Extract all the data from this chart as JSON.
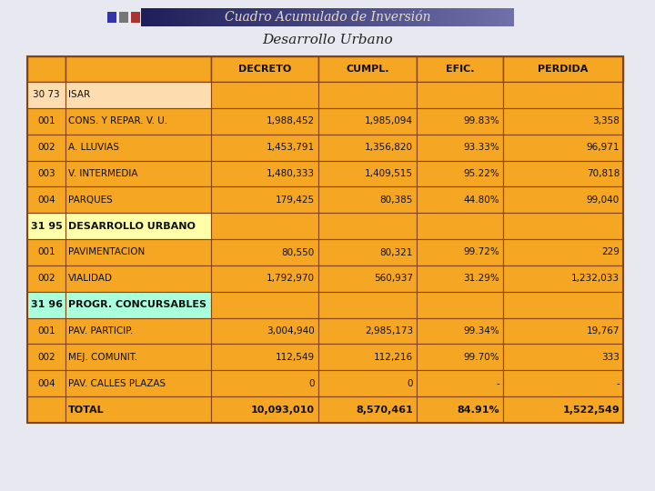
{
  "title1": "Cuadro Acumulado de Inversión",
  "title2": "Desarrollo Urbano",
  "rows": [
    {
      "col0": "30 73",
      "col1": "ISAR",
      "decreto": "",
      "cumpl": "",
      "efic": "",
      "perdida": "",
      "row_bg": "light_peach",
      "bold": false
    },
    {
      "col0": "001",
      "col1": "CONS. Y REPAR. V. U.",
      "decreto": "1,988,452",
      "cumpl": "1,985,094",
      "efic": "99.83%",
      "perdida": "3,358",
      "row_bg": "orange",
      "bold": false
    },
    {
      "col0": "002",
      "col1": "A. LLUVIAS",
      "decreto": "1,453,791",
      "cumpl": "1,356,820",
      "efic": "93.33%",
      "perdida": "96,971",
      "row_bg": "orange",
      "bold": false
    },
    {
      "col0": "003",
      "col1": "V. INTERMEDIA",
      "decreto": "1,480,333",
      "cumpl": "1,409,515",
      "efic": "95.22%",
      "perdida": "70,818",
      "row_bg": "orange",
      "bold": false
    },
    {
      "col0": "004",
      "col1": "PARQUES",
      "decreto": "179,425",
      "cumpl": "80,385",
      "efic": "44.80%",
      "perdida": "99,040",
      "row_bg": "orange",
      "bold": false
    },
    {
      "col0": "31 95",
      "col1": "DESARROLLO URBANO",
      "decreto": "",
      "cumpl": "",
      "efic": "",
      "perdida": "",
      "row_bg": "light_yellow",
      "bold": true
    },
    {
      "col0": "001",
      "col1": "PAVIMENTACION",
      "decreto": "80,550",
      "cumpl": "80,321",
      "efic": "99.72%",
      "perdida": "229",
      "row_bg": "orange",
      "bold": false
    },
    {
      "col0": "002",
      "col1": "VIALIDAD",
      "decreto": "1,792,970",
      "cumpl": "560,937",
      "efic": "31.29%",
      "perdida": "1,232,033",
      "row_bg": "orange",
      "bold": false
    },
    {
      "col0": "31 96",
      "col1": "PROGR. CONCURSABLES",
      "decreto": "",
      "cumpl": "",
      "efic": "",
      "perdida": "",
      "row_bg": "light_green",
      "bold": true
    },
    {
      "col0": "001",
      "col1": "PAV. PARTICIP.",
      "decreto": "3,004,940",
      "cumpl": "2,985,173",
      "efic": "99.34%",
      "perdida": "19,767",
      "row_bg": "orange",
      "bold": false
    },
    {
      "col0": "002",
      "col1": "MEJ. COMUNIT.",
      "decreto": "112,549",
      "cumpl": "112,216",
      "efic": "99.70%",
      "perdida": "333",
      "row_bg": "orange",
      "bold": false
    },
    {
      "col0": "004",
      "col1": "PAV. CALLES PLAZAS",
      "decreto": "0",
      "cumpl": "0",
      "efic": "-",
      "perdida": "-",
      "row_bg": "orange",
      "bold": false
    },
    {
      "col0": "",
      "col1": "TOTAL",
      "decreto": "10,093,010",
      "cumpl": "8,570,461",
      "efic": "84.91%",
      "perdida": "1,522,549",
      "row_bg": "orange",
      "bold": true
    }
  ],
  "bg_color": "#e8e8f0",
  "orange": "#F5A623",
  "light_peach": "#FDDCB0",
  "light_yellow": "#FFFFAA",
  "light_green": "#AAFFDD",
  "border_color": "#8B4500",
  "grad_left": "#1E1E5A",
  "grad_right": "#7070AA",
  "title_text_color": "#E8DCC8",
  "title2_color": "#222222",
  "sq_colors": [
    "#3333AA",
    "#777777",
    "#AA3333"
  ]
}
